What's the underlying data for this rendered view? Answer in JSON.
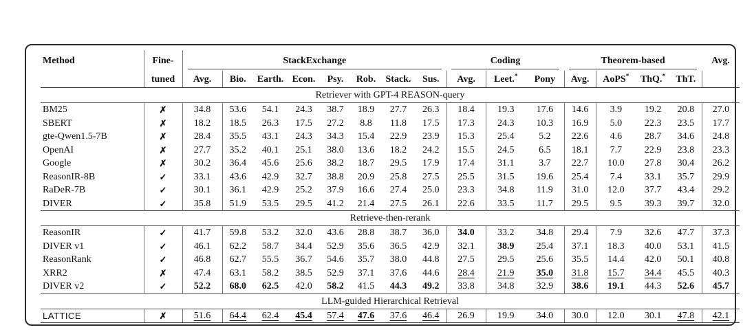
{
  "table": {
    "header": {
      "method_label": "Method",
      "finetuned_line1": "Fine-",
      "finetuned_line2": "tuned",
      "groups": [
        {
          "label": "StackExchange",
          "columns": [
            "Avg.",
            "Bio.",
            "Earth.",
            "Econ.",
            "Psy.",
            "Rob.",
            "Stack.",
            "Sus."
          ]
        },
        {
          "label": "Coding",
          "columns": [
            "Avg.",
            "Leet.*",
            "Pony"
          ]
        },
        {
          "label": "Theorem-based",
          "columns": [
            "Avg.",
            "AoPS*",
            "ThQ.*",
            "ThT."
          ]
        }
      ],
      "overall_avg_label": "Avg."
    },
    "tuned_glyphs": {
      "yes": "✓",
      "no": "✗"
    },
    "sections": [
      {
        "title": "Retriever with GPT-4 REASON-query",
        "rows": [
          {
            "method": "BM25",
            "tuned": "no",
            "cells": [
              "34.8",
              "53.6",
              "54.1",
              "24.3",
              "38.7",
              "18.9",
              "27.7",
              "26.3",
              "18.4",
              "19.3",
              "17.6",
              "14.6",
              "3.9",
              "19.2",
              "20.8",
              "27.0"
            ]
          },
          {
            "method": "SBERT",
            "tuned": "no",
            "cells": [
              "18.2",
              "18.5",
              "26.3",
              "17.5",
              "27.2",
              "8.8",
              "11.8",
              "17.5",
              "17.3",
              "24.3",
              "10.3",
              "16.9",
              "5.0",
              "22.3",
              "23.5",
              "17.7"
            ]
          },
          {
            "method": "gte-Qwen1.5-7B",
            "tuned": "no",
            "cells": [
              "28.4",
              "35.5",
              "43.1",
              "24.3",
              "34.3",
              "15.4",
              "22.9",
              "23.9",
              "15.3",
              "25.4",
              "5.2",
              "22.6",
              "4.6",
              "28.7",
              "34.6",
              "24.8"
            ]
          },
          {
            "method": "OpenAI",
            "tuned": "no",
            "cells": [
              "27.7",
              "35.2",
              "40.1",
              "25.1",
              "38.0",
              "13.6",
              "18.2",
              "24.2",
              "15.5",
              "24.5",
              "6.5",
              "18.1",
              "7.7",
              "22.9",
              "23.8",
              "23.3"
            ]
          },
          {
            "method": "Google",
            "tuned": "no",
            "cells": [
              "30.2",
              "36.4",
              "45.6",
              "25.6",
              "38.2",
              "18.7",
              "29.5",
              "17.9",
              "17.4",
              "31.1",
              "3.7",
              "22.7",
              "10.0",
              "27.8",
              "30.4",
              "26.2"
            ]
          },
          {
            "method": "ReasonIR-8B",
            "tuned": "yes",
            "cells": [
              "33.1",
              "43.6",
              "42.9",
              "32.7",
              "38.8",
              "20.9",
              "25.8",
              "27.5",
              "25.5",
              "31.5",
              "19.6",
              "25.4",
              "7.4",
              "33.1",
              "35.7",
              "29.9"
            ]
          },
          {
            "method": "RaDeR-7B",
            "tuned": "yes",
            "cells": [
              "30.1",
              "36.1",
              "42.9",
              "25.2",
              "37.9",
              "16.6",
              "27.4",
              "25.0",
              "23.3",
              "34.8",
              "11.9",
              "31.0",
              "12.0",
              "37.7",
              "43.4",
              "29.2"
            ]
          },
          {
            "method": "DIVER",
            "tuned": "yes",
            "cells": [
              "35.8",
              "51.9",
              "53.5",
              "29.5",
              "41.2",
              "21.4",
              "27.5",
              "26.1",
              "22.6",
              "33.5",
              "11.7",
              "29.5",
              "9.5",
              "39.3",
              "39.7",
              "32.0"
            ]
          }
        ]
      },
      {
        "title": "Retrieve-then-rerank",
        "rows": [
          {
            "method": "ReasonIR",
            "tuned": "yes",
            "cells": [
              "41.7",
              "59.8",
              "53.2",
              "32.0",
              "43.6",
              "28.8",
              "38.7",
              "36.0",
              {
                "v": "34.0",
                "style": "bold"
              },
              "33.2",
              "34.8",
              "29.4",
              "7.9",
              "32.6",
              "47.7",
              "37.3"
            ]
          },
          {
            "method": "DIVER v1",
            "tuned": "yes",
            "cells": [
              "46.1",
              "62.2",
              "58.7",
              "34.4",
              "52.9",
              "35.6",
              "36.5",
              "42.9",
              "32.1",
              {
                "v": "38.9",
                "style": "bold"
              },
              "25.4",
              "37.1",
              "18.3",
              "40.0",
              "53.1",
              "41.5"
            ]
          },
          {
            "method": "ReasonRank",
            "tuned": "yes",
            "cells": [
              "46.8",
              "62.7",
              "55.5",
              "36.7",
              "54.6",
              "35.7",
              "38.0",
              "44.8",
              "27.5",
              "29.5",
              "25.6",
              "35.5",
              "14.4",
              "42.0",
              "50.1",
              "40.8"
            ]
          },
          {
            "method": "XRR2",
            "tuned": "no",
            "cells": [
              "47.4",
              "63.1",
              "58.2",
              "38.5",
              "52.9",
              "37.1",
              "37.6",
              "44.6",
              {
                "v": "28.4",
                "style": "underline"
              },
              {
                "v": "21.9",
                "style": "underline"
              },
              {
                "v": "35.0",
                "style": "bold-underline"
              },
              {
                "v": "31.8",
                "style": "underline"
              },
              {
                "v": "15.7",
                "style": "underline"
              },
              {
                "v": "34.4",
                "style": "underline"
              },
              "45.5",
              "40.3"
            ]
          },
          {
            "method": "DIVER v2",
            "tuned": "yes",
            "cells": [
              {
                "v": "52.2",
                "style": "bold"
              },
              {
                "v": "68.0",
                "style": "bold"
              },
              {
                "v": "62.5",
                "style": "bold"
              },
              "42.0",
              {
                "v": "58.2",
                "style": "bold"
              },
              "41.5",
              {
                "v": "44.3",
                "style": "bold"
              },
              {
                "v": "49.2",
                "style": "bold"
              },
              "33.8",
              "34.8",
              "32.9",
              {
                "v": "38.6",
                "style": "bold"
              },
              {
                "v": "19.1",
                "style": "bold"
              },
              "44.3",
              {
                "v": "52.6",
                "style": "bold"
              },
              {
                "v": "45.7",
                "style": "bold"
              }
            ]
          }
        ]
      },
      {
        "title": "LLM-guided Hierarchical Retrieval",
        "rows": [
          {
            "method": "LATTICE",
            "tuned": "no",
            "highlight": true,
            "cells": [
              {
                "v": "51.6",
                "style": "underline"
              },
              {
                "v": "64.4",
                "style": "underline"
              },
              {
                "v": "62.4",
                "style": "underline"
              },
              {
                "v": "45.4",
                "style": "bold-underline"
              },
              {
                "v": "57.4",
                "style": "underline"
              },
              {
                "v": "47.6",
                "style": "bold-underline"
              },
              {
                "v": "37.6",
                "style": "underline"
              },
              {
                "v": "46.4",
                "style": "underline"
              },
              "26.9",
              "19.9",
              "34.0",
              "30.0",
              "12.0",
              "30.1",
              {
                "v": "47.8",
                "style": "underline"
              },
              {
                "v": "42.1",
                "style": "underline"
              }
            ]
          }
        ]
      }
    ]
  }
}
